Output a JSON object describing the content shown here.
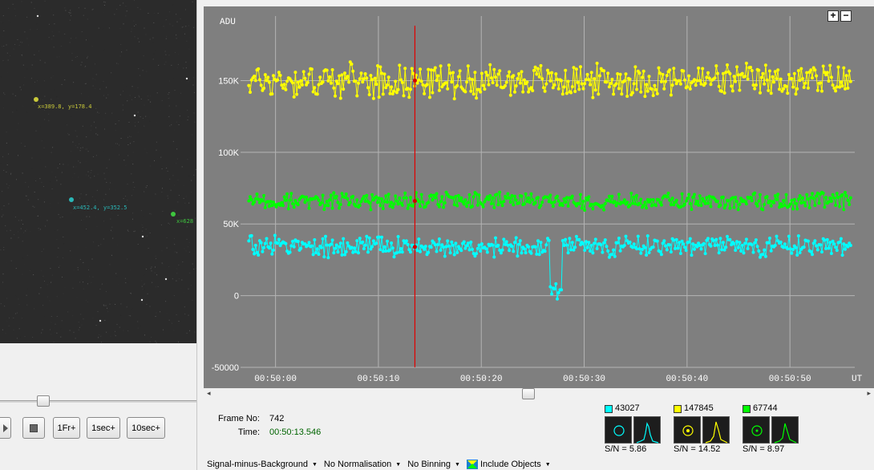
{
  "player": {
    "targets": [
      {
        "label": "x=389.8,  y=178.4",
        "color": "#c9c93a"
      },
      {
        "label": "x=452.4,  y=352.5",
        "color": "#2ab7b7"
      },
      {
        "label": "x=628",
        "color": "#3ec63e"
      }
    ],
    "buttons": {
      "stop": "",
      "frame_fwd": "1Fr+",
      "sec_fwd": "1sec+",
      "ten_sec_fwd": "10sec+"
    },
    "position_fraction": 0.2
  },
  "chart_data": {
    "type": "scatter",
    "ylabel": "ADU",
    "xlabel": "UT",
    "ylim": [
      -50000,
      195000
    ],
    "yticks": [
      -50000,
      0,
      50000,
      100000,
      150000
    ],
    "ytick_labels": [
      "-50000",
      "0",
      "50K",
      "100K",
      "150K"
    ],
    "x_tick_labels": [
      "00:50:00",
      "00:50:10",
      "00:50:20",
      "00:50:30",
      "00:50:40",
      "00:50:50"
    ],
    "x_ticks_seconds": [
      0,
      10,
      20,
      30,
      40,
      50
    ],
    "xlim_seconds": [
      -3.4,
      56.3
    ],
    "cursor_seconds": 13.546,
    "grid": true,
    "series": [
      {
        "color": "#ffff00",
        "mean": 150000,
        "noise": 11000
      },
      {
        "color": "#00ff00",
        "mean": 66000,
        "noise": 5500
      },
      {
        "color": "#00ffff",
        "mean": 34000,
        "noise": 7000,
        "dip": {
          "start": 26.6,
          "end": 27.9,
          "depth": 32000
        }
      }
    ],
    "samples_per_second": 7.5
  },
  "zoom": {
    "in": "+",
    "out": "−"
  },
  "frame": {
    "no_label": "Frame No:",
    "no_value": "742",
    "time_label": "Time:",
    "time_value": "00:50:13.546"
  },
  "objects": [
    {
      "count": "43027",
      "color": "#00ffff",
      "snr": "S/N =  5.86"
    },
    {
      "count": "147845",
      "color": "#ffff00",
      "snr": "S/N =  14.52"
    },
    {
      "count": "67744",
      "color": "#00ff00",
      "snr": "S/N =  8.97"
    }
  ],
  "status": {
    "signal": "Signal-minus-Background",
    "normalisation": "No Normalisation",
    "binning": "No Binning",
    "include": "Include Objects"
  }
}
